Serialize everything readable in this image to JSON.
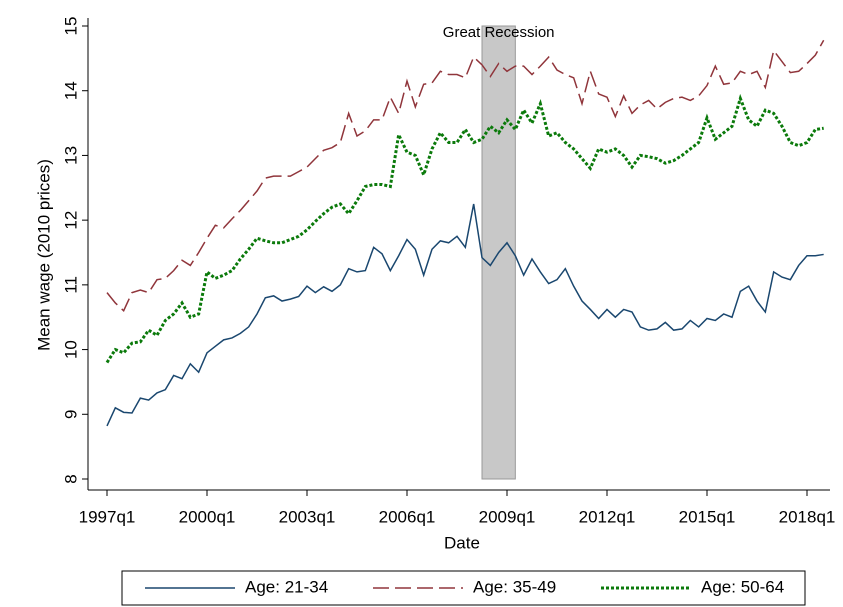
{
  "chart_data": {
    "type": "line",
    "x_label": "Date",
    "y_label": "Mean wage (2010 prices)",
    "x": [
      "1997q1",
      "1997q2",
      "1997q3",
      "1997q4",
      "1998q1",
      "1998q2",
      "1998q3",
      "1998q4",
      "1999q1",
      "1999q2",
      "1999q3",
      "1999q4",
      "2000q1",
      "2000q2",
      "2000q3",
      "2000q4",
      "2001q1",
      "2001q2",
      "2001q3",
      "2001q4",
      "2002q1",
      "2002q2",
      "2002q3",
      "2002q4",
      "2003q1",
      "2003q2",
      "2003q3",
      "2003q4",
      "2004q1",
      "2004q2",
      "2004q3",
      "2004q4",
      "2005q1",
      "2005q2",
      "2005q3",
      "2005q4",
      "2006q1",
      "2006q2",
      "2006q3",
      "2006q4",
      "2007q1",
      "2007q2",
      "2007q3",
      "2007q4",
      "2008q1",
      "2008q2",
      "2008q3",
      "2008q4",
      "2009q1",
      "2009q2",
      "2009q3",
      "2009q4",
      "2010q1",
      "2010q2",
      "2010q3",
      "2010q4",
      "2011q1",
      "2011q2",
      "2011q3",
      "2011q4",
      "2012q1",
      "2012q2",
      "2012q3",
      "2012q4",
      "2013q1",
      "2013q2",
      "2013q3",
      "2013q4",
      "2014q1",
      "2014q2",
      "2014q3",
      "2014q4",
      "2015q1",
      "2015q2",
      "2015q3",
      "2015q4",
      "2016q1",
      "2016q2",
      "2016q3",
      "2016q4",
      "2017q1",
      "2017q2",
      "2017q3",
      "2017q4",
      "2018q1",
      "2018q2",
      "2018q3"
    ],
    "xticks": [
      "1997q1",
      "2000q1",
      "2003q1",
      "2006q1",
      "2009q1",
      "2012q1",
      "2015q1",
      "2018q1"
    ],
    "ylim": [
      8,
      15
    ],
    "yticks": [
      8,
      9,
      10,
      11,
      12,
      13,
      14,
      15
    ],
    "shade": {
      "label": "Great Recession",
      "start": "2008q2",
      "end": "2009q2",
      "color": "#c8c8c8"
    },
    "legend": "bottom",
    "series": [
      {
        "name": "Age: 21-34",
        "color": "#1a476f",
        "dash": "solid",
        "values": [
          8.82,
          9.1,
          9.03,
          9.02,
          9.25,
          9.22,
          9.33,
          9.38,
          9.6,
          9.55,
          9.78,
          9.65,
          9.95,
          10.05,
          10.15,
          10.18,
          10.25,
          10.35,
          10.55,
          10.8,
          10.83,
          10.75,
          10.78,
          10.82,
          10.98,
          10.88,
          10.97,
          10.9,
          11.0,
          11.25,
          11.2,
          11.22,
          11.58,
          11.48,
          11.22,
          11.45,
          11.7,
          11.55,
          11.15,
          11.55,
          11.68,
          11.65,
          11.75,
          11.58,
          12.25,
          11.42,
          11.3,
          11.5,
          11.65,
          11.45,
          11.15,
          11.4,
          11.2,
          11.02,
          11.08,
          11.25,
          10.98,
          10.75,
          10.62,
          10.48,
          10.62,
          10.5,
          10.62,
          10.58,
          10.35,
          10.3,
          10.32,
          10.42,
          10.3,
          10.32,
          10.45,
          10.35,
          10.48,
          10.45,
          10.55,
          10.5,
          10.9,
          10.98,
          10.75,
          10.58,
          11.2,
          11.12,
          11.08,
          11.3,
          11.45,
          11.45,
          11.47
        ]
      },
      {
        "name": "Age: 35-49",
        "color": "#90353b",
        "dash": "long",
        "values": [
          10.88,
          10.72,
          10.6,
          10.88,
          10.92,
          10.88,
          11.08,
          11.1,
          11.22,
          11.38,
          11.3,
          11.5,
          11.72,
          11.92,
          11.88,
          12.02,
          12.15,
          12.3,
          12.45,
          12.65,
          12.68,
          12.68,
          12.68,
          12.75,
          12.82,
          12.95,
          13.08,
          13.12,
          13.2,
          13.65,
          13.3,
          13.38,
          13.55,
          13.55,
          13.9,
          13.65,
          14.15,
          13.75,
          14.1,
          14.12,
          14.3,
          14.25,
          14.25,
          14.2,
          14.52,
          14.4,
          14.22,
          14.42,
          14.3,
          14.38,
          14.38,
          14.25,
          14.38,
          14.52,
          14.32,
          14.25,
          14.2,
          13.8,
          14.3,
          13.95,
          13.9,
          13.6,
          13.92,
          13.65,
          13.78,
          13.85,
          13.72,
          13.82,
          13.88,
          13.9,
          13.85,
          13.92,
          14.08,
          14.38,
          14.1,
          14.12,
          14.3,
          14.25,
          14.3,
          14.05,
          14.62,
          14.45,
          14.28,
          14.3,
          14.42,
          14.55,
          14.78
        ]
      },
      {
        "name": "Age: 50-64",
        "color": "#0b7a0b",
        "dash": "dot",
        "values": [
          9.8,
          10.0,
          9.95,
          10.1,
          10.12,
          10.3,
          10.22,
          10.45,
          10.55,
          10.72,
          10.5,
          10.55,
          11.2,
          11.1,
          11.15,
          11.22,
          11.4,
          11.55,
          11.72,
          11.68,
          11.65,
          11.65,
          11.7,
          11.75,
          11.85,
          11.98,
          12.1,
          12.2,
          12.25,
          12.1,
          12.3,
          12.52,
          12.55,
          12.55,
          12.52,
          13.32,
          13.05,
          13.0,
          12.7,
          13.1,
          13.35,
          13.2,
          13.2,
          13.4,
          13.2,
          13.25,
          13.45,
          13.35,
          13.55,
          13.4,
          13.7,
          13.5,
          13.8,
          13.3,
          13.35,
          13.2,
          13.1,
          12.95,
          12.8,
          13.1,
          13.05,
          13.1,
          13.0,
          12.82,
          13.0,
          12.98,
          12.95,
          12.88,
          12.92,
          13.0,
          13.1,
          13.2,
          13.58,
          13.25,
          13.35,
          13.45,
          13.88,
          13.55,
          13.45,
          13.7,
          13.65,
          13.45,
          13.2,
          13.15,
          13.2,
          13.4,
          13.42
        ]
      }
    ]
  }
}
